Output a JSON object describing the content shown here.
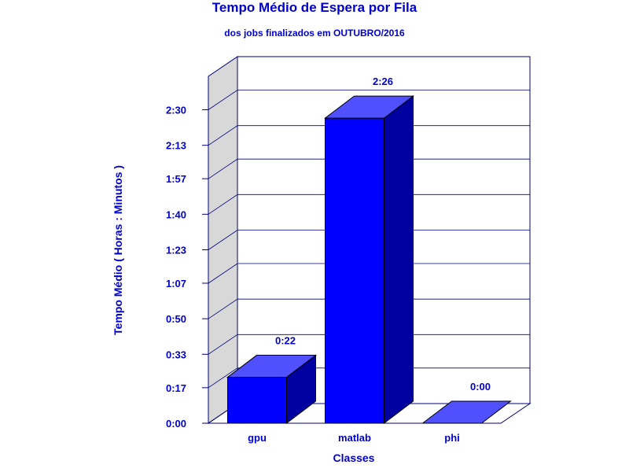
{
  "chart_data": {
    "type": "bar",
    "title": "Tempo Médio de Espera por Fila",
    "subtitle": "dos jobs finalizados em OUTUBRO/2016",
    "xlabel": "Classes",
    "ylabel": "Tempo Médio ( Horas : Minutos )",
    "categories": [
      "gpu",
      "matlab",
      "phi"
    ],
    "values": [
      22,
      146,
      0
    ],
    "value_labels": [
      "0:22",
      "2:26",
      "0:00"
    ],
    "y_unit": "minutes",
    "ylim": [
      0,
      166
    ],
    "y_ticks": [
      0,
      17,
      33,
      50,
      67,
      83,
      100,
      117,
      133,
      150
    ],
    "y_tick_labels": [
      "0:00",
      "0:17",
      "0:33",
      "0:50",
      "1:07",
      "1:23",
      "1:40",
      "1:57",
      "2:13",
      "2:30"
    ],
    "grid": true,
    "legend": "none",
    "colors": {
      "text": "#0000cc",
      "bar_front": "#0000ff",
      "bar_top": "#5050ff",
      "bar_side": "#0000a0",
      "wall": "#d8d8d8",
      "grid": "#000080"
    }
  }
}
